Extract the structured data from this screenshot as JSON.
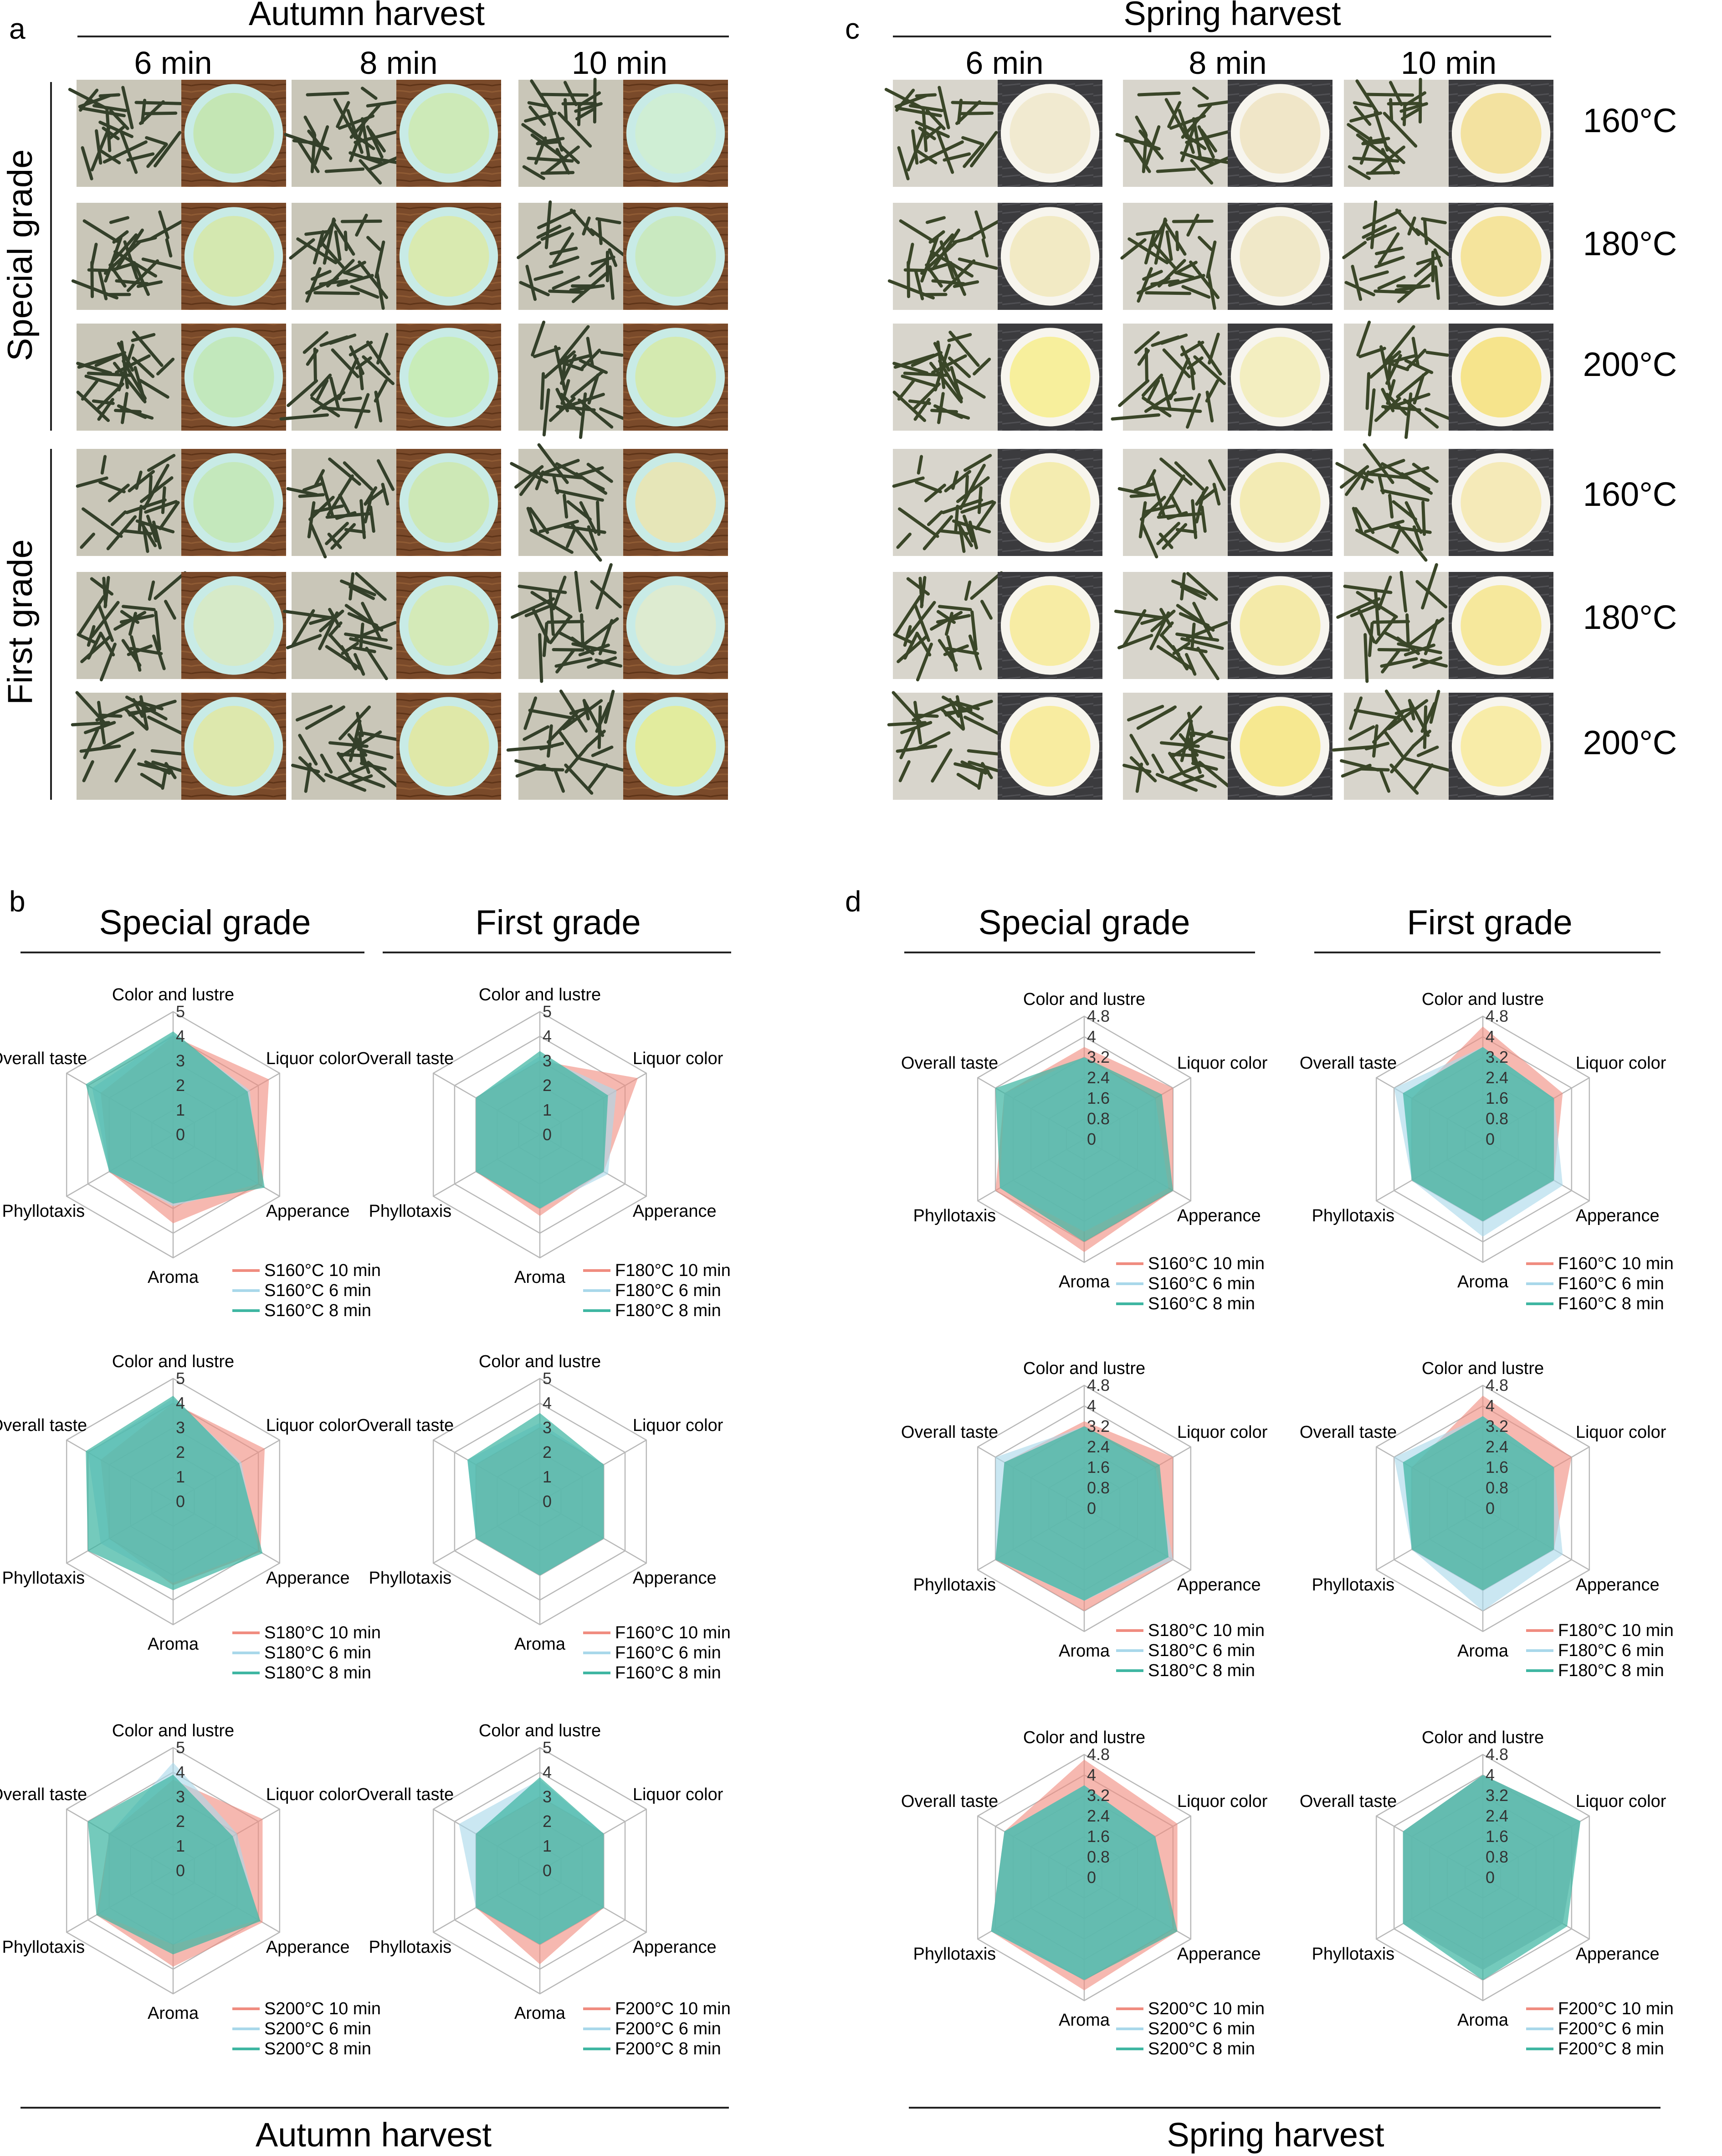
{
  "panels": {
    "a": {
      "letter": "a",
      "title": "Autumn harvest",
      "times": [
        "6 min",
        "8 min",
        "10 min"
      ],
      "row_group_labels": [
        "Special grade",
        "First grade"
      ]
    },
    "b": {
      "letter": "b",
      "footer": "Autumn harvest",
      "col_titles": [
        "Special grade",
        "First grade"
      ]
    },
    "c": {
      "letter": "c",
      "title": "Spring harvest",
      "times": [
        "6 min",
        "8 min",
        "10 min"
      ],
      "temps": [
        "160°C",
        "180°C",
        "200°C",
        "160°C",
        "180°C",
        "200°C"
      ]
    },
    "d": {
      "letter": "d",
      "footer": "Spring harvest",
      "col_titles": [
        "Special grade",
        "First grade"
      ]
    }
  },
  "photos": {
    "autumn": {
      "leaf_color": "#34402a",
      "bg_color": "#c9c6b8",
      "cup_rim": "#c8ebe6",
      "liquor_colors": [
        [
          "#c4e6b4",
          "#cdeab8",
          "#cfeed4"
        ],
        [
          "#d4e8b0",
          "#d9eab0",
          "#c9e9c0"
        ],
        [
          "#c2e8bc",
          "#c8ecb8",
          "#d4eab0"
        ],
        [
          "#c4e8bc",
          "#cde8b6",
          "#e6e6b8"
        ],
        [
          "#d6eac8",
          "#d4eab8",
          "#ddebd0"
        ],
        [
          "#dde8ad",
          "#dfe8a8",
          "#e2ec9e"
        ]
      ]
    },
    "spring": {
      "leaf_color": "#3a4628",
      "bg_color": "#d8d5cc",
      "bowl_bg": "#3a3a3c",
      "liquor_colors": [
        [
          "#f1ead0",
          "#f0e6c8",
          "#f3e2a0"
        ],
        [
          "#f2eac4",
          "#f0e8c8",
          "#f5e49c"
        ],
        [
          "#f7ef9c",
          "#f3eec0",
          "#f6e48c"
        ],
        [
          "#f4ecb0",
          "#f3ebb4",
          "#f5eab8"
        ],
        [
          "#f7eca4",
          "#f4eaa8",
          "#f6e89c"
        ],
        [
          "#f8eca0",
          "#f6e890",
          "#f8eca8"
        ]
      ]
    }
  },
  "colors": {
    "c10": "#f08c80",
    "c6": "#a9d8ea",
    "c8": "#3fb6a2",
    "grid": "#b8b8b8"
  },
  "chart_data": [
    {
      "type": "radar",
      "id": "autumn_special_160",
      "max": 5,
      "ticks": [
        "0",
        "1",
        "2",
        "3",
        "4",
        "5"
      ],
      "axes": [
        "Color and lustre",
        "Liquor color",
        "Apperance",
        "Aroma",
        "Phyllotaxis",
        "Overall taste"
      ],
      "series": [
        {
          "name": "S160°C 10 min",
          "values": [
            4.0,
            4.5,
            4.2,
            3.6,
            3.0,
            3.4
          ]
        },
        {
          "name": "S160°C 6 min",
          "values": [
            4.1,
            3.6,
            4.0,
            2.9,
            3.0,
            3.8
          ]
        },
        {
          "name": "S160°C 8 min",
          "values": [
            4.2,
            3.5,
            4.3,
            2.8,
            3.0,
            4.1
          ]
        }
      ]
    },
    {
      "type": "radar",
      "id": "autumn_first_180",
      "max": 5,
      "ticks": [
        "0",
        "1",
        "2",
        "3",
        "4",
        "5"
      ],
      "axes": [
        "Color and lustre",
        "Liquor color",
        "Apperance",
        "Aroma",
        "Phyllotaxis",
        "Overall taste"
      ],
      "series": [
        {
          "name": "F180°C 10 min",
          "values": [
            3.0,
            4.6,
            3.0,
            3.3,
            3.0,
            3.0
          ]
        },
        {
          "name": "F180°C 6 min",
          "values": [
            3.2,
            3.6,
            3.2,
            3.0,
            3.0,
            3.0
          ]
        },
        {
          "name": "F180°C 8 min",
          "values": [
            3.4,
            3.2,
            3.0,
            3.0,
            3.0,
            3.0
          ]
        }
      ]
    },
    {
      "type": "radar",
      "id": "autumn_special_180",
      "max": 5,
      "ticks": [
        "0",
        "1",
        "2",
        "3",
        "4",
        "5"
      ],
      "axes": [
        "Color and lustre",
        "Liquor color",
        "Apperance",
        "Aroma",
        "Phyllotaxis",
        "Overall taste"
      ],
      "series": [
        {
          "name": "S180°C 10 min",
          "values": [
            4.0,
            4.3,
            4.1,
            3.4,
            3.0,
            3.4
          ]
        },
        {
          "name": "S180°C 6 min",
          "values": [
            4.2,
            3.2,
            4.0,
            3.3,
            3.4,
            4.0
          ]
        },
        {
          "name": "S180°C 8 min",
          "values": [
            4.3,
            3.1,
            4.2,
            3.6,
            4.0,
            4.1
          ]
        }
      ]
    },
    {
      "type": "radar",
      "id": "autumn_first_160",
      "max": 5,
      "ticks": [
        "0",
        "1",
        "2",
        "3",
        "4",
        "5"
      ],
      "axes": [
        "Color and lustre",
        "Liquor color",
        "Apperance",
        "Aroma",
        "Phyllotaxis",
        "Overall taste"
      ],
      "series": [
        {
          "name": "F160°C 10 min",
          "values": [
            3.0,
            3.0,
            3.0,
            3.0,
            3.0,
            3.0
          ]
        },
        {
          "name": "F160°C 6 min",
          "values": [
            3.2,
            3.0,
            3.0,
            3.0,
            3.0,
            3.4
          ]
        },
        {
          "name": "F160°C 8 min",
          "values": [
            3.6,
            3.0,
            3.0,
            3.0,
            3.0,
            3.4
          ]
        }
      ]
    },
    {
      "type": "radar",
      "id": "autumn_special_200",
      "max": 5,
      "ticks": [
        "0",
        "1",
        "2",
        "3",
        "4",
        "5"
      ],
      "axes": [
        "Color and lustre",
        "Liquor color",
        "Apperance",
        "Aroma",
        "Phyllotaxis",
        "Overall taste"
      ],
      "series": [
        {
          "name": "S200°C 10 min",
          "values": [
            3.7,
            4.2,
            4.2,
            3.9,
            3.6,
            3.0
          ]
        },
        {
          "name": "S200°C 6 min",
          "values": [
            4.4,
            3.0,
            4.0,
            3.0,
            3.5,
            3.0
          ]
        },
        {
          "name": "S200°C 8 min",
          "values": [
            3.9,
            2.8,
            4.1,
            3.4,
            3.6,
            4.0
          ]
        }
      ]
    },
    {
      "type": "radar",
      "id": "autumn_first_200",
      "max": 5,
      "ticks": [
        "0",
        "1",
        "2",
        "3",
        "4",
        "5"
      ],
      "axes": [
        "Color and lustre",
        "Liquor color",
        "Apperance",
        "Aroma",
        "Phyllotaxis",
        "Overall taste"
      ],
      "series": [
        {
          "name": "F200°C 10 min",
          "values": [
            3.0,
            3.0,
            3.0,
            3.8,
            3.0,
            3.0
          ]
        },
        {
          "name": "F200°C 6 min",
          "values": [
            3.7,
            3.0,
            3.0,
            3.0,
            3.0,
            3.8
          ]
        },
        {
          "name": "F200°C 8 min",
          "values": [
            3.8,
            3.0,
            3.0,
            3.0,
            3.0,
            3.0
          ]
        }
      ]
    },
    {
      "type": "radar",
      "id": "spring_special_160",
      "max": 4.8,
      "ticks": [
        "0",
        "0.8",
        "1.6",
        "2.4",
        "3.2",
        "4",
        "4.8"
      ],
      "axes": [
        "Color and lustre",
        "Liquor color",
        "Apperance",
        "Aroma",
        "Phyllotaxis",
        "Overall taste"
      ],
      "series": [
        {
          "name": "S160°C 10 min",
          "values": [
            3.6,
            4.0,
            4.0,
            4.4,
            4.0,
            3.6
          ]
        },
        {
          "name": "S160°C 6 min",
          "values": [
            3.2,
            3.2,
            3.8,
            3.6,
            3.8,
            3.6
          ]
        },
        {
          "name": "S160°C 8 min",
          "values": [
            3.2,
            3.5,
            4.0,
            4.0,
            3.8,
            4.0
          ]
        }
      ]
    },
    {
      "type": "radar",
      "id": "spring_first_160",
      "max": 4.8,
      "ticks": [
        "0",
        "0.8",
        "1.6",
        "2.4",
        "3.2",
        "4",
        "4.8"
      ],
      "axes": [
        "Color and lustre",
        "Liquor color",
        "Apperance",
        "Aroma",
        "Phyllotaxis",
        "Overall taste"
      ],
      "series": [
        {
          "name": "F160°C 10 min",
          "values": [
            4.4,
            3.6,
            3.2,
            3.2,
            3.2,
            3.2
          ]
        },
        {
          "name": "F160°C 6 min",
          "values": [
            3.6,
            3.2,
            3.6,
            3.8,
            3.2,
            4.0
          ]
        },
        {
          "name": "F160°C 8 min",
          "values": [
            3.6,
            3.2,
            3.2,
            3.2,
            3.2,
            3.6
          ]
        }
      ]
    },
    {
      "type": "radar",
      "id": "spring_special_180",
      "max": 4.8,
      "ticks": [
        "0",
        "0.8",
        "1.6",
        "2.4",
        "3.2",
        "4",
        "4.8"
      ],
      "axes": [
        "Color and lustre",
        "Liquor color",
        "Apperance",
        "Aroma",
        "Phyllotaxis",
        "Overall taste"
      ],
      "series": [
        {
          "name": "S180°C 10 min",
          "values": [
            3.4,
            4.0,
            4.0,
            4.0,
            4.0,
            3.6
          ]
        },
        {
          "name": "S180°C 6 min",
          "values": [
            3.2,
            3.2,
            4.0,
            3.6,
            4.0,
            4.0
          ]
        },
        {
          "name": "S180°C 8 min",
          "values": [
            3.2,
            3.4,
            3.8,
            3.6,
            4.0,
            3.6
          ]
        }
      ]
    },
    {
      "type": "radar",
      "id": "spring_first_180",
      "max": 4.8,
      "ticks": [
        "0",
        "0.8",
        "1.6",
        "2.4",
        "3.2",
        "4",
        "4.8"
      ],
      "axes": [
        "Color and lustre",
        "Liquor color",
        "Apperance",
        "Aroma",
        "Phyllotaxis",
        "Overall taste"
      ],
      "series": [
        {
          "name": "F180°C 10 min",
          "values": [
            4.4,
            4.0,
            3.2,
            3.2,
            3.2,
            3.2
          ]
        },
        {
          "name": "F180°C 6 min",
          "values": [
            3.6,
            3.2,
            3.6,
            4.0,
            3.2,
            4.0
          ]
        },
        {
          "name": "F180°C 8 min",
          "values": [
            3.6,
            3.2,
            3.2,
            3.2,
            3.2,
            3.6
          ]
        }
      ]
    },
    {
      "type": "radar",
      "id": "spring_special_200",
      "max": 4.8,
      "ticks": [
        "0",
        "0.8",
        "1.6",
        "2.4",
        "3.2",
        "4",
        "4.8"
      ],
      "axes": [
        "Color and lustre",
        "Liquor color",
        "Apperance",
        "Aroma",
        "Phyllotaxis",
        "Overall taste"
      ],
      "series": [
        {
          "name": "S200°C 10 min",
          "values": [
            4.6,
            4.2,
            4.2,
            4.4,
            4.2,
            3.6
          ]
        },
        {
          "name": "S200°C 6 min",
          "values": [
            3.6,
            3.2,
            4.0,
            4.0,
            4.2,
            3.6
          ]
        },
        {
          "name": "S200°C 8 min",
          "values": [
            3.6,
            3.2,
            4.2,
            4.0,
            4.2,
            3.6
          ]
        }
      ]
    },
    {
      "type": "radar",
      "id": "spring_first_200",
      "max": 4.8,
      "ticks": [
        "0",
        "0.8",
        "1.6",
        "2.4",
        "3.2",
        "4",
        "4.8"
      ],
      "axes": [
        "Color and lustre",
        "Liquor color",
        "Apperance",
        "Aroma",
        "Phyllotaxis",
        "Overall taste"
      ],
      "series": [
        {
          "name": "F200°C 10 min",
          "values": [
            4.0,
            4.4,
            3.6,
            3.6,
            3.6,
            3.6
          ]
        },
        {
          "name": "F200°C 6 min",
          "values": [
            4.0,
            4.4,
            3.6,
            3.6,
            3.6,
            3.6
          ]
        },
        {
          "name": "F200°C 8 min",
          "values": [
            4.0,
            4.4,
            3.8,
            4.0,
            3.6,
            3.6
          ]
        }
      ]
    }
  ]
}
